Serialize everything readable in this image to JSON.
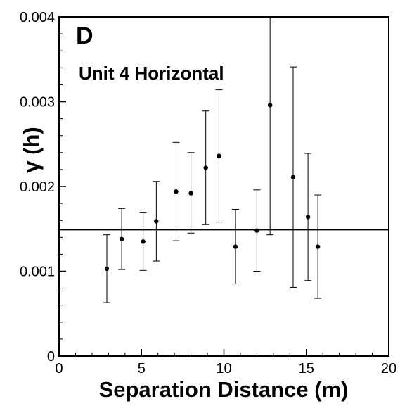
{
  "chart_data": {
    "type": "scatter",
    "panel_letter": "D",
    "title": "Unit 4 Horizontal",
    "xlabel": "Separation Distance (m)",
    "ylabel": "γ (h)",
    "xlim": [
      0,
      20
    ],
    "ylim": [
      0,
      0.004
    ],
    "x_ticks": [
      0,
      5,
      10,
      15,
      20
    ],
    "x_tick_labels": [
      "0",
      "5",
      "10",
      "15",
      "20"
    ],
    "y_ticks": [
      0,
      0.001,
      0.002,
      0.003,
      0.004
    ],
    "y_tick_labels": [
      "0",
      "0.001",
      "0.002",
      "0.003",
      "0.004"
    ],
    "grid": false,
    "points": [
      {
        "x": 2.9,
        "y": 0.00103,
        "ylow": 0.00063,
        "yhigh": 0.00143
      },
      {
        "x": 3.8,
        "y": 0.00138,
        "ylow": 0.00102,
        "yhigh": 0.00174
      },
      {
        "x": 5.1,
        "y": 0.00135,
        "ylow": 0.00101,
        "yhigh": 0.00169
      },
      {
        "x": 5.9,
        "y": 0.00159,
        "ylow": 0.00112,
        "yhigh": 0.00206
      },
      {
        "x": 7.1,
        "y": 0.00194,
        "ylow": 0.00136,
        "yhigh": 0.00252
      },
      {
        "x": 8.0,
        "y": 0.00192,
        "ylow": 0.00145,
        "yhigh": 0.0024
      },
      {
        "x": 8.9,
        "y": 0.00222,
        "ylow": 0.00155,
        "yhigh": 0.00289
      },
      {
        "x": 9.7,
        "y": 0.00236,
        "ylow": 0.00158,
        "yhigh": 0.00314
      },
      {
        "x": 10.7,
        "y": 0.00129,
        "ylow": 0.00085,
        "yhigh": 0.00173
      },
      {
        "x": 12.0,
        "y": 0.00148,
        "ylow": 0.001,
        "yhigh": 0.00196
      },
      {
        "x": 12.8,
        "y": 0.00296,
        "ylow": 0.00143,
        "yhigh": 0.004
      },
      {
        "x": 14.2,
        "y": 0.00211,
        "ylow": 0.00081,
        "yhigh": 0.00341
      },
      {
        "x": 15.1,
        "y": 0.00164,
        "ylow": 0.00089,
        "yhigh": 0.00239
      },
      {
        "x": 15.7,
        "y": 0.00129,
        "ylow": 0.00068,
        "yhigh": 0.0019
      }
    ],
    "reference_line": {
      "y": 0.00149
    }
  }
}
